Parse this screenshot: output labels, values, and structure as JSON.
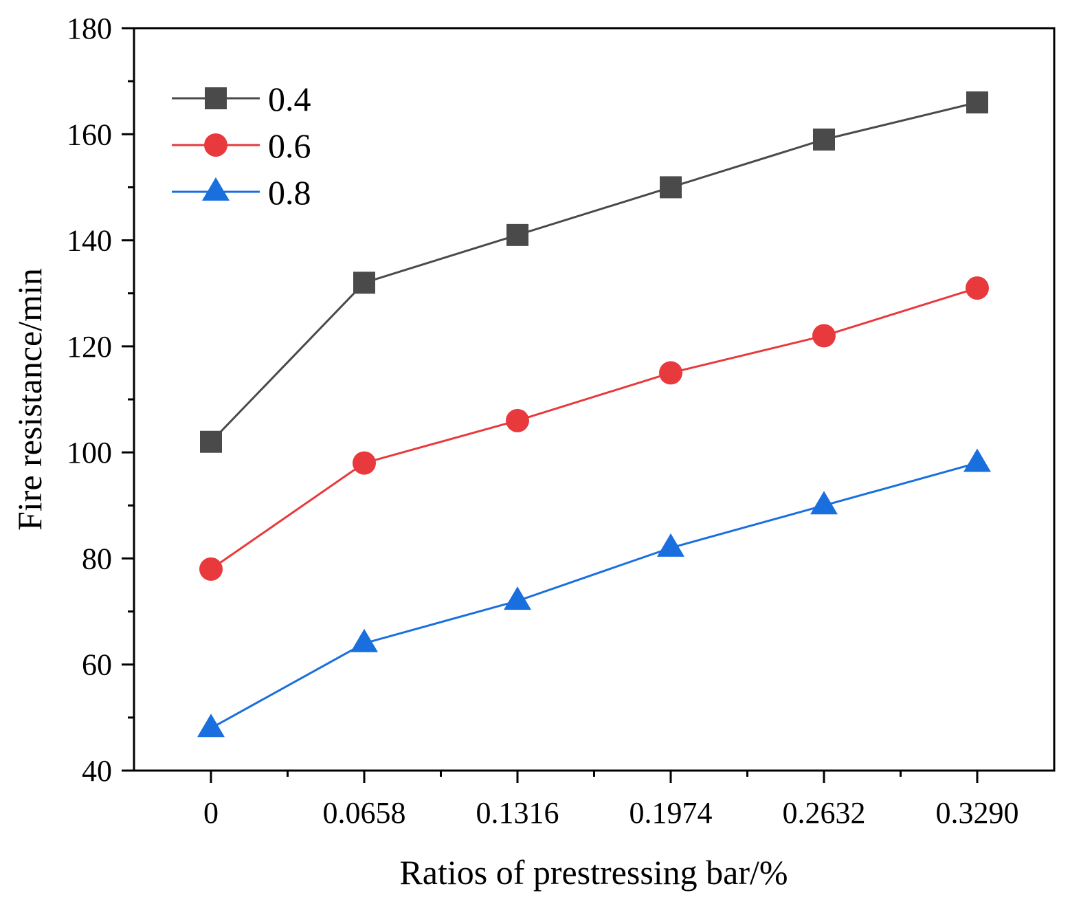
{
  "chart_data": {
    "type": "line",
    "title": "",
    "xlabel": "Ratios of prestressing bar/%",
    "ylabel": "Fire resistance/min",
    "categories": [
      "0",
      "0.0658",
      "0.1316",
      "0.1974",
      "0.2632",
      "0.3290"
    ],
    "ylim": [
      40,
      180
    ],
    "yticks": [
      40,
      60,
      80,
      100,
      120,
      140,
      160,
      180
    ],
    "grid": false,
    "legend_position": "top-left",
    "series": [
      {
        "name": "0.4",
        "marker": "square",
        "color": "#4a4a4a",
        "values": [
          102,
          132,
          141,
          150,
          159,
          166
        ]
      },
      {
        "name": "0.6",
        "marker": "circle",
        "color": "#e8393c",
        "values": [
          78,
          98,
          106,
          115,
          122,
          131
        ]
      },
      {
        "name": "0.8",
        "marker": "triangle",
        "color": "#1a6fdf",
        "values": [
          48,
          64,
          72,
          82,
          90,
          98
        ]
      }
    ]
  }
}
